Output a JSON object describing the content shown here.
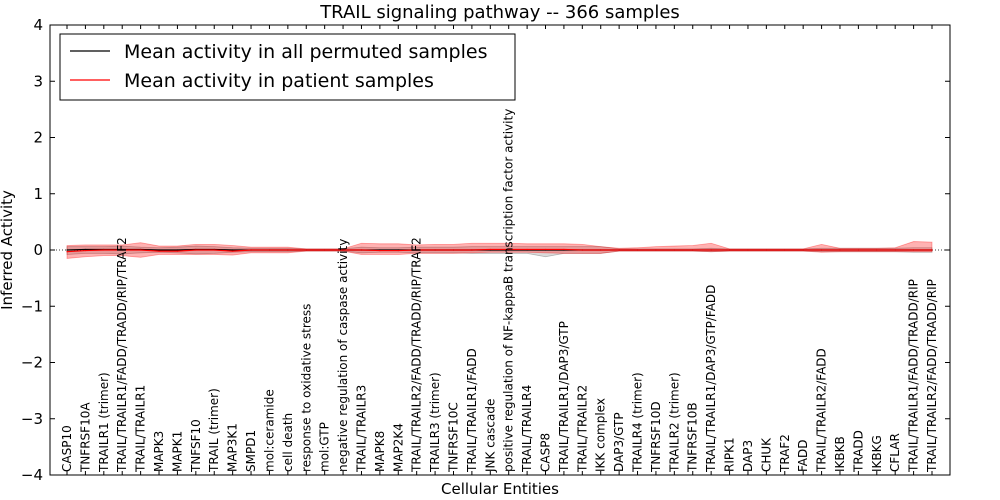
{
  "chart_data": {
    "type": "line",
    "title": "TRAIL signaling pathway -- 366 samples",
    "xlabel": "Cellular Entities",
    "ylabel": "Inferred Activity",
    "ylim": [
      -4,
      4
    ],
    "yticks": [
      -4,
      -3,
      -2,
      -1,
      0,
      1,
      2,
      3,
      4
    ],
    "ytick_labels": [
      "−4",
      "−3",
      "−2",
      "−1",
      "0",
      "1",
      "2",
      "3",
      "4"
    ],
    "legend_position": "top-left",
    "categories": [
      "CASP10",
      "TNFRSF10A",
      "TRAILR1 (trimer)",
      "TRAIL/TRAILR1/FADD/TRADD/RIP/TRAF2",
      "TRAIL/TRAILR1",
      "MAPK3",
      "MAPK1",
      "TNFSF10",
      "TRAIL (trimer)",
      "MAP3K1",
      "SMPD1",
      "mol:ceramide",
      "cell death",
      "response to oxidative stress",
      "mol:GTP",
      "negative regulation of caspase activity",
      "TRAIL/TRAILR3",
      "MAPK8",
      "MAP2K4",
      "TRAIL/TRAILR2/FADD/TRADD/RIP/TRAF2",
      "TRAILR3 (trimer)",
      "TNFRSF10C",
      "TRAIL/TRAILR1/FADD",
      "JNK cascade",
      "positive regulation of NF-kappaB transcription factor activity",
      "TRAIL/TRAILR4",
      "CASP8",
      "TRAIL/TRAILR1/DAP3/GTP",
      "TRAIL/TRAILR2",
      "IKK complex",
      "DAP3/GTP",
      "TRAILR4 (trimer)",
      "TNFRSF10D",
      "TRAILR2 (trimer)",
      "TNFRSF10B",
      "TRAIL/TRAILR1/DAP3/GTP/FADD",
      "RIPK1",
      "DAP3",
      "CHUK",
      "TRAF2",
      "FADD",
      "TRAIL/TRAILR2/FADD",
      "IKBKB",
      "TRADD",
      "IKBKG",
      "CFLAR",
      "TRAIL/TRAILR1/FADD/TRADD/RIP",
      "TRAIL/TRAILR2/FADD/TRADD/RIP"
    ],
    "series": [
      {
        "name": "Mean activity in all permuted samples",
        "color": "#000000",
        "values": [
          0.0,
          0.01,
          0.01,
          0.01,
          0.01,
          0.0,
          0.0,
          0.01,
          0.01,
          0.0,
          0.0,
          0.0,
          0.0,
          0.0,
          0.0,
          0.0,
          0.0,
          0.0,
          0.0,
          0.0,
          0.0,
          0.0,
          0.0,
          0.0,
          0.0,
          0.0,
          0.0,
          0.0,
          0.0,
          0.0,
          0.0,
          0.0,
          0.0,
          0.0,
          0.0,
          0.0,
          0.0,
          0.0,
          0.0,
          0.0,
          0.0,
          0.0,
          0.0,
          0.0,
          0.0,
          0.0,
          0.0,
          0.0
        ],
        "lower": [
          -0.08,
          -0.06,
          -0.06,
          -0.07,
          -0.05,
          -0.04,
          -0.05,
          -0.07,
          -0.06,
          -0.04,
          -0.03,
          -0.03,
          -0.03,
          -0.02,
          -0.02,
          -0.02,
          -0.05,
          -0.04,
          -0.04,
          -0.05,
          -0.05,
          -0.05,
          -0.06,
          -0.06,
          -0.06,
          -0.06,
          -0.12,
          -0.06,
          -0.06,
          -0.06,
          -0.02,
          -0.02,
          -0.02,
          -0.02,
          -0.02,
          -0.03,
          -0.02,
          -0.02,
          -0.02,
          -0.02,
          -0.02,
          -0.03,
          -0.03,
          -0.03,
          -0.03,
          -0.03,
          -0.04,
          -0.04
        ],
        "upper": [
          0.06,
          0.06,
          0.06,
          0.07,
          0.05,
          0.04,
          0.05,
          0.07,
          0.06,
          0.04,
          0.03,
          0.03,
          0.03,
          0.02,
          0.02,
          0.02,
          0.05,
          0.04,
          0.04,
          0.05,
          0.05,
          0.05,
          0.06,
          0.06,
          0.06,
          0.06,
          0.06,
          0.06,
          0.06,
          0.06,
          0.02,
          0.02,
          0.02,
          0.02,
          0.02,
          0.03,
          0.02,
          0.02,
          0.02,
          0.02,
          0.02,
          0.03,
          0.03,
          0.03,
          0.03,
          0.03,
          0.04,
          0.04
        ]
      },
      {
        "name": "Mean activity in patient samples",
        "color": "#ff0000",
        "values": [
          -0.03,
          -0.01,
          0.0,
          0.0,
          0.0,
          -0.02,
          -0.02,
          0.0,
          0.0,
          -0.02,
          0.0,
          0.0,
          0.0,
          0.0,
          0.0,
          0.0,
          0.0,
          -0.01,
          -0.01,
          0.0,
          0.0,
          0.0,
          0.0,
          0.01,
          0.01,
          0.01,
          0.01,
          0.01,
          0.0,
          0.0,
          0.0,
          0.0,
          0.0,
          0.0,
          0.0,
          0.0,
          0.0,
          0.0,
          0.0,
          0.0,
          0.0,
          0.0,
          0.0,
          0.0,
          0.0,
          0.0,
          0.0,
          0.0
        ],
        "lower": [
          -0.15,
          -0.12,
          -0.1,
          -0.1,
          -0.13,
          -0.08,
          -0.08,
          -0.08,
          -0.08,
          -0.09,
          -0.05,
          -0.05,
          -0.05,
          -0.02,
          -0.02,
          -0.02,
          -0.08,
          -0.08,
          -0.08,
          -0.06,
          -0.06,
          -0.06,
          -0.05,
          -0.04,
          -0.04,
          -0.04,
          -0.05,
          -0.06,
          -0.06,
          -0.06,
          -0.02,
          -0.02,
          -0.02,
          -0.02,
          -0.02,
          -0.03,
          -0.02,
          -0.02,
          -0.02,
          -0.02,
          -0.02,
          -0.04,
          -0.03,
          -0.03,
          -0.03,
          -0.03,
          -0.03,
          -0.03
        ],
        "upper": [
          0.08,
          0.09,
          0.09,
          0.09,
          0.13,
          0.07,
          0.07,
          0.1,
          0.1,
          0.08,
          0.05,
          0.05,
          0.05,
          0.02,
          0.02,
          0.02,
          0.12,
          0.11,
          0.11,
          0.09,
          0.1,
          0.1,
          0.12,
          0.12,
          0.12,
          0.11,
          0.11,
          0.11,
          0.1,
          0.06,
          0.03,
          0.04,
          0.06,
          0.07,
          0.08,
          0.12,
          0.02,
          0.02,
          0.02,
          0.02,
          0.02,
          0.1,
          0.03,
          0.03,
          0.03,
          0.04,
          0.15,
          0.14
        ]
      }
    ]
  }
}
